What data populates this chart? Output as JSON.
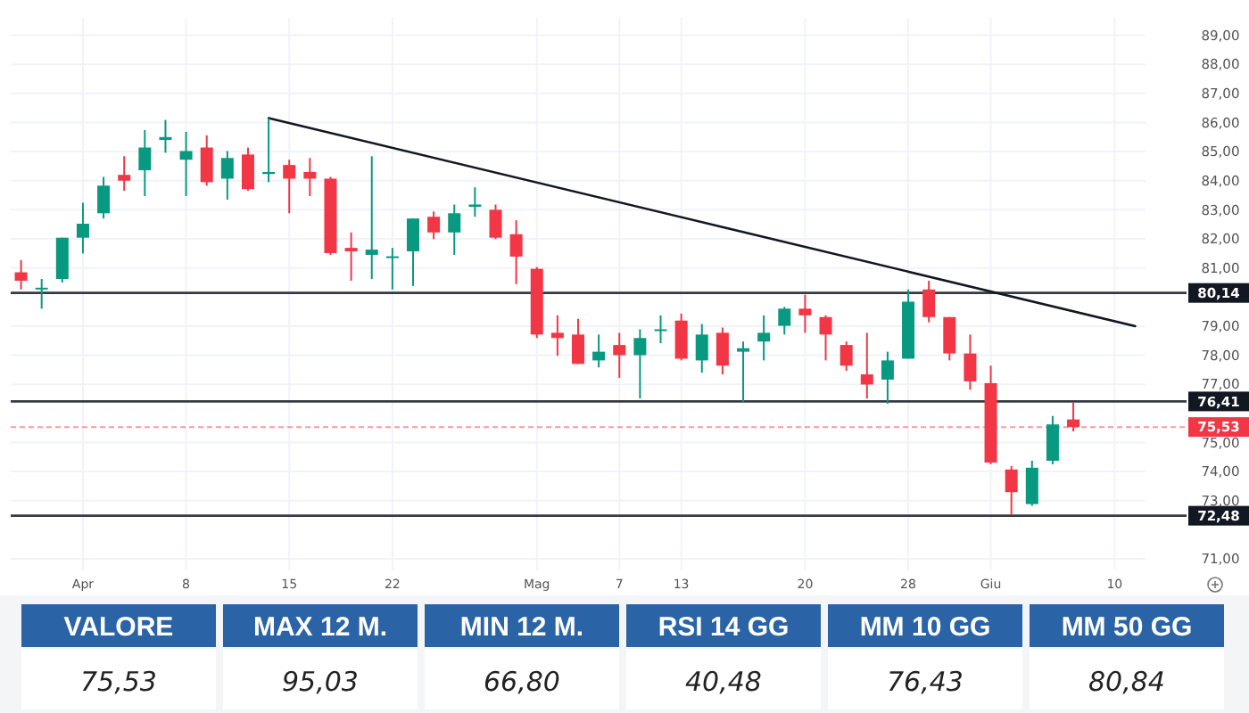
{
  "chart_data": [
    {
      "type": "candlestick",
      "categories": [
        null,
        null,
        null,
        "Apr",
        null,
        null,
        null,
        null,
        "8",
        null,
        null,
        null,
        null,
        "15",
        null,
        null,
        null,
        null,
        "22",
        null,
        null,
        null,
        null,
        null,
        null,
        "Mag",
        null,
        null,
        null,
        "7",
        null,
        null,
        "13",
        null,
        null,
        null,
        null,
        null,
        "20",
        null,
        null,
        null,
        null,
        "28",
        null,
        null,
        null,
        "Giu",
        null,
        null,
        null,
        null,
        null,
        "10",
        null
      ],
      "ohlc": [
        [
          80.85,
          81.27,
          80.26,
          80.56
        ],
        [
          80.26,
          80.62,
          79.6,
          80.32
        ],
        [
          80.62,
          82.04,
          80.5,
          82.04
        ],
        [
          82.04,
          83.24,
          81.5,
          82.52
        ],
        [
          82.88,
          84.13,
          82.7,
          83.83
        ],
        [
          84.2,
          84.84,
          83.65,
          84.0
        ],
        [
          84.36,
          85.74,
          83.47,
          85.14
        ],
        [
          85.4,
          86.09,
          84.96,
          85.5
        ],
        [
          84.72,
          85.68,
          83.47,
          85.02
        ],
        [
          85.14,
          85.56,
          83.83,
          83.95
        ],
        [
          84.07,
          85.02,
          83.35,
          84.78
        ],
        [
          84.9,
          85.14,
          83.65,
          83.71
        ],
        [
          84.23,
          86.15,
          83.95,
          84.3
        ],
        [
          84.54,
          84.72,
          82.88,
          84.07
        ],
        [
          84.3,
          84.78,
          83.47,
          84.07
        ],
        [
          84.07,
          84.13,
          81.45,
          81.51
        ],
        [
          81.69,
          82.22,
          80.56,
          81.57
        ],
        [
          81.45,
          84.84,
          80.62,
          81.63
        ],
        [
          81.35,
          81.69,
          80.26,
          81.4
        ],
        [
          81.57,
          82.7,
          80.38,
          82.7
        ],
        [
          82.76,
          82.94,
          81.99,
          82.22
        ],
        [
          82.22,
          83.18,
          81.45,
          82.88
        ],
        [
          83.1,
          83.77,
          82.76,
          83.18
        ],
        [
          83.0,
          83.18,
          81.99,
          82.04
        ],
        [
          82.16,
          82.64,
          80.44,
          81.39
        ],
        [
          80.97,
          81.03,
          78.59,
          78.71
        ],
        [
          78.77,
          79.37,
          77.98,
          78.59
        ],
        [
          78.71,
          79.25,
          77.7,
          77.7
        ],
        [
          77.82,
          78.71,
          77.58,
          78.12
        ],
        [
          78.35,
          78.77,
          77.22,
          78.0
        ],
        [
          78.0,
          78.89,
          76.51,
          78.59
        ],
        [
          78.83,
          79.37,
          78.41,
          78.89
        ],
        [
          79.19,
          79.43,
          77.82,
          77.88
        ],
        [
          77.82,
          79.07,
          77.4,
          78.71
        ],
        [
          78.77,
          78.95,
          77.34,
          77.64
        ],
        [
          78.12,
          78.47,
          76.39,
          78.24
        ],
        [
          78.47,
          79.37,
          77.82,
          78.77
        ],
        [
          79.01,
          79.66,
          78.71,
          79.6
        ],
        [
          79.6,
          80.08,
          78.77,
          79.37
        ],
        [
          79.31,
          79.37,
          77.82,
          78.71
        ],
        [
          78.35,
          78.47,
          77.46,
          77.64
        ],
        [
          77.34,
          78.77,
          76.51,
          76.99
        ],
        [
          77.16,
          78.12,
          76.33,
          77.82
        ],
        [
          77.88,
          80.26,
          77.88,
          79.84
        ],
        [
          80.26,
          80.56,
          79.13,
          79.31
        ],
        [
          79.31,
          79.31,
          77.82,
          78.06
        ],
        [
          78.06,
          78.71,
          76.81,
          77.1
        ],
        [
          77.04,
          77.64,
          74.25,
          74.31
        ],
        [
          74.07,
          74.19,
          72.52,
          73.29
        ],
        [
          72.88,
          74.37,
          72.82,
          74.13
        ],
        [
          74.37,
          75.91,
          74.25,
          75.62
        ],
        [
          75.79,
          76.39,
          75.38,
          75.53
        ],
        null,
        null,
        null
      ],
      "series": [
        {
          "type": "line",
          "color": "#131722",
          "values": [
            null,
            null,
            null,
            null,
            null,
            null,
            null,
            null,
            null,
            null,
            null,
            null,
            86.15,
            null,
            null,
            null,
            null,
            null,
            null,
            null,
            null,
            null,
            null,
            null,
            null,
            null,
            null,
            null,
            null,
            null,
            null,
            null,
            null,
            null,
            null,
            null,
            null,
            null,
            null,
            null,
            null,
            null,
            null,
            null,
            null,
            null,
            null,
            null,
            null,
            null,
            null,
            null,
            null,
            null,
            79.0
          ]
        }
      ],
      "ylim": [
        70.6,
        89.6
      ],
      "yticks": [
        {
          "value": 71,
          "label": "71,00"
        },
        {
          "value": 73,
          "label": "73,00"
        },
        {
          "value": 74,
          "label": "74,00"
        },
        {
          "value": 75,
          "label": "75,00"
        },
        {
          "value": 77,
          "label": "77,00"
        },
        {
          "value": 78,
          "label": "78,00"
        },
        {
          "value": 79,
          "label": "79,00"
        },
        {
          "value": 81,
          "label": "81,00"
        },
        {
          "value": 82,
          "label": "82,00"
        },
        {
          "value": 83,
          "label": "83,00"
        },
        {
          "value": 84,
          "label": "84,00"
        },
        {
          "value": 85,
          "label": "85,00"
        },
        {
          "value": 86,
          "label": "86,00"
        },
        {
          "value": 87,
          "label": "87,00"
        },
        {
          "value": 88,
          "label": "88,00"
        },
        {
          "value": 89,
          "label": "89,00"
        }
      ],
      "ref_lines": [
        {
          "axis": "y",
          "value": 80.14,
          "label": "80,14",
          "color": "#131722"
        },
        {
          "axis": "y",
          "value": 76.41,
          "label": "76,41",
          "color": "#131722"
        },
        {
          "axis": "y",
          "value": 72.48,
          "label": "72,48",
          "color": "#131722"
        },
        {
          "axis": "y",
          "value": 75.53,
          "label": "75,53",
          "color": "#f23645",
          "line_style": "dashed"
        }
      ],
      "grid": true
    },
    {
      "type": "other",
      "categories": [
        "VALORE",
        "MAX 12 M.",
        "MIN 12 M.",
        "RSI 14 GG",
        "MM 10 GG",
        "MM 50 GG"
      ],
      "value_labels": [
        "75,53",
        "95,03",
        "66,80",
        "40,48",
        "76,43",
        "80,84"
      ]
    }
  ]
}
